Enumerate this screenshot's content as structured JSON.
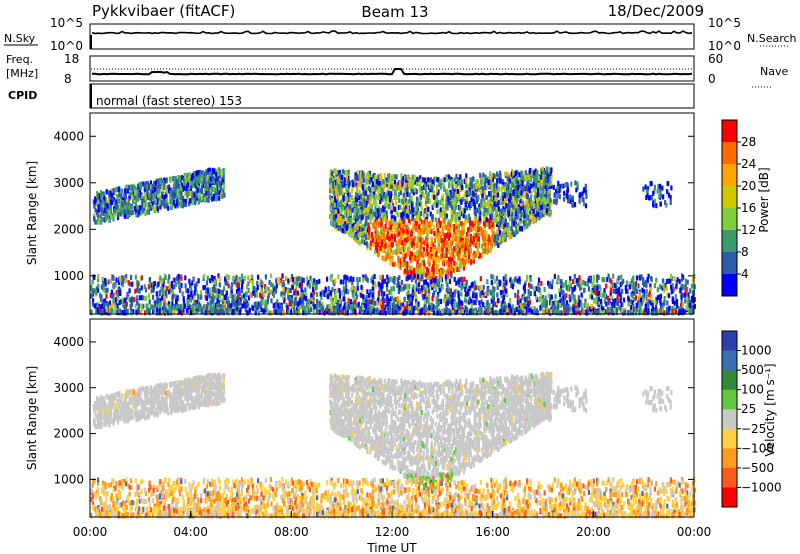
{
  "header": {
    "radar": "Pykkvibaer (fitACF)",
    "beam": "Beam 13",
    "date": "18/Dec/2009"
  },
  "top_panels": {
    "nsky_label": "N.Sky",
    "nsearch_label": "N.Search",
    "nsky_ticks": [
      "10^5",
      "10^0"
    ],
    "nsearch_ticks": [
      "10^5",
      "10^0"
    ],
    "freq_label_1": "Freq.",
    "freq_label_2": "[MHz]",
    "freq_ticks": [
      "18",
      "8"
    ],
    "nave_label": "Nave",
    "nave_ticks": [
      "60",
      "0"
    ],
    "cpid_label": "CPID",
    "cpid_text": "normal (fast stereo) 153"
  },
  "chart_data": [
    {
      "type": "heatmap",
      "name": "power",
      "ylabel": "Slant Range [km]",
      "yticks": [
        "4000",
        "3000",
        "2000",
        "1000"
      ],
      "yticks_values": [
        4000,
        3000,
        2000,
        1000
      ],
      "ylim": [
        180,
        4500
      ],
      "xlim": [
        0,
        24
      ],
      "colorbar_label": "Power [dB]",
      "colorbar_ticks": [
        "28",
        "24",
        "20",
        "16",
        "12",
        "8",
        "4"
      ],
      "colorbar_colors": [
        "#ff0000",
        "#ff6a00",
        "#ffa500",
        "#d2c800",
        "#7fcf3c",
        "#3c9a6e",
        "#2e5bab",
        "#0000ff"
      ]
    },
    {
      "type": "heatmap",
      "name": "velocity",
      "ylabel": "Slant Range [km]",
      "yticks": [
        "4000",
        "3000",
        "2000",
        "1000"
      ],
      "yticks_values": [
        4000,
        3000,
        2000,
        1000
      ],
      "ylim": [
        180,
        4500
      ],
      "xlim": [
        0,
        24
      ],
      "colorbar_label": "Velocity [m s⁻¹]",
      "colorbar_ticks": [
        "1000",
        "500",
        "100",
        "25",
        "−25",
        "−100",
        "−500",
        "−1000"
      ],
      "colorbar_colors": [
        "#2c3fb0",
        "#3a6fb8",
        "#2f8a3a",
        "#5fc83f",
        "#c8c8c8",
        "#ffd040",
        "#ff9a1a",
        "#ff5a1a",
        "#ff0000"
      ]
    }
  ],
  "x_axis": {
    "ticks": [
      "00:00",
      "04:00",
      "08:00",
      "12:00",
      "16:00",
      "20:00",
      "00:00"
    ],
    "ticks_hours": [
      0,
      4,
      8,
      12,
      16,
      20,
      24
    ],
    "label": "Time UT"
  }
}
